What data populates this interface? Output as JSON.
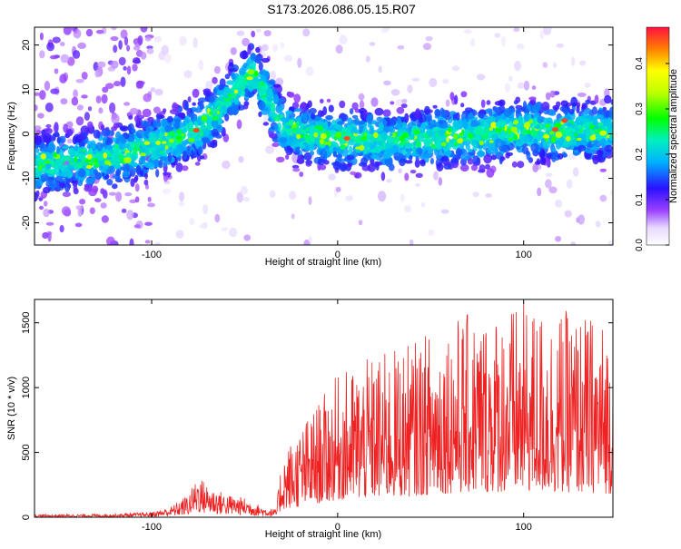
{
  "title": "S173.2026.086.05.15.R07",
  "colors": {
    "snr_line": "#ee2222",
    "frame": "#000000",
    "spectrogram_low": "#d8c8f8",
    "spectrogram_mid": "#6a1de0",
    "spectrogram_high": "#ff2020"
  },
  "chart_data": [
    {
      "type": "heatmap",
      "title": "S173.2026.086.05.15.R07",
      "xlabel": "Height of straight line (km)",
      "ylabel": "Frequency (Hz)",
      "xlim": [
        -163,
        148
      ],
      "ylim": [
        -25,
        24
      ],
      "x_ticks": [
        -100,
        0,
        100
      ],
      "y_ticks": [
        -20,
        -10,
        0,
        10,
        20
      ],
      "grid": false,
      "ridge": {
        "x": [
          -163,
          -140,
          -120,
          -100,
          -85,
          -75,
          -65,
          -55,
          -50,
          -45,
          -40,
          -35,
          -30,
          -20,
          0,
          20,
          50,
          80,
          100,
          120,
          148
        ],
        "y": [
          -7,
          -6,
          -5,
          -3,
          -1,
          1,
          5,
          10,
          12,
          14,
          10,
          6,
          2,
          0,
          -1,
          -1.5,
          -1,
          0,
          1,
          0.5,
          1
        ]
      },
      "colorbar": {
        "label": "Normalized spectral amplitude",
        "range": [
          0,
          0.48
        ],
        "ticks": [
          "0.0",
          "0.1",
          "0.2",
          "0.3",
          "0.4"
        ]
      }
    },
    {
      "type": "line",
      "xlabel": "Height of straight line (km)",
      "ylabel": "SNR (10 * v/v)",
      "xlim": [
        -163,
        148
      ],
      "ylim": [
        0,
        1680
      ],
      "x_ticks": [
        -100,
        0,
        100
      ],
      "y_ticks": [
        0,
        500,
        1000,
        1500
      ],
      "grid": false,
      "series": [
        {
          "envelope_x": [
            -163,
            -120,
            -100,
            -90,
            -80,
            -75,
            -70,
            -60,
            -50,
            -40,
            -33,
            -30,
            -20,
            -10,
            0,
            20,
            40,
            60,
            80,
            100,
            120,
            140,
            148
          ],
          "envelope_y": [
            20,
            25,
            40,
            80,
            180,
            330,
            250,
            180,
            150,
            80,
            60,
            500,
            700,
            900,
            1100,
            1250,
            1350,
            1550,
            1600,
            1650,
            1600,
            1550,
            1500
          ]
        }
      ]
    }
  ]
}
